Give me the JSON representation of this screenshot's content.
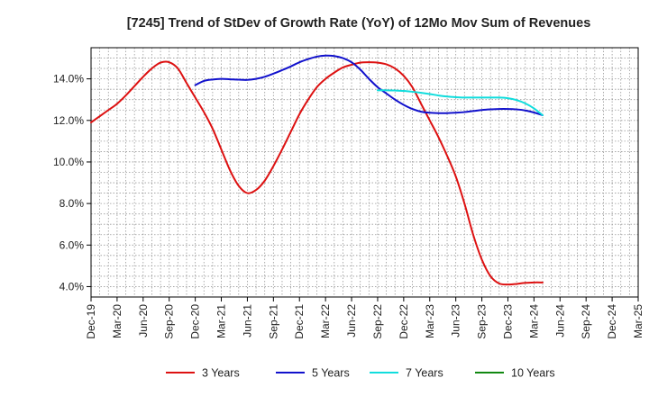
{
  "chart_data": {
    "type": "line",
    "title": "[7245]  Trend of StDev of Growth Rate (YoY) of 12Mo Mov Sum of Revenues",
    "xlabel": "",
    "ylabel": "",
    "x_range": [
      0,
      63
    ],
    "ylim": [
      3.5,
      15.5
    ],
    "y_ticks": [
      4,
      6,
      8,
      10,
      12,
      14
    ],
    "y_tick_labels": [
      "4.0%",
      "6.0%",
      "8.0%",
      "10.0%",
      "12.0%",
      "14.0%"
    ],
    "x_tick_labels": [
      "Dec-19",
      "Mar-20",
      "Jun-20",
      "Sep-20",
      "Dec-20",
      "Mar-21",
      "Jun-21",
      "Sep-21",
      "Dec-21",
      "Mar-22",
      "Jun-22",
      "Sep-22",
      "Dec-22",
      "Mar-23",
      "Jun-23",
      "Sep-23",
      "Dec-23",
      "Mar-24",
      "Jun-24",
      "Sep-24",
      "Dec-24",
      "Mar-25"
    ],
    "grid": true,
    "legend_position": "bottom",
    "series": [
      {
        "name": "3 Years",
        "color": "#dd1111",
        "points": [
          [
            0,
            11.9
          ],
          [
            1,
            12.2
          ],
          [
            2,
            12.5
          ],
          [
            3,
            12.8
          ],
          [
            4,
            13.2
          ],
          [
            5,
            13.65
          ],
          [
            6,
            14.1
          ],
          [
            7,
            14.5
          ],
          [
            8,
            14.78
          ],
          [
            9,
            14.8
          ],
          [
            10,
            14.5
          ],
          [
            11,
            13.8
          ],
          [
            12,
            13.1
          ],
          [
            13,
            12.4
          ],
          [
            14,
            11.6
          ],
          [
            15,
            10.6
          ],
          [
            16,
            9.6
          ],
          [
            17,
            8.85
          ],
          [
            18,
            8.5
          ],
          [
            19,
            8.65
          ],
          [
            20,
            9.1
          ],
          [
            21,
            9.8
          ],
          [
            22,
            10.6
          ],
          [
            23,
            11.45
          ],
          [
            24,
            12.3
          ],
          [
            25,
            13.0
          ],
          [
            26,
            13.6
          ],
          [
            27,
            14.0
          ],
          [
            28,
            14.3
          ],
          [
            29,
            14.55
          ],
          [
            30,
            14.68
          ],
          [
            31,
            14.78
          ],
          [
            32,
            14.8
          ],
          [
            33,
            14.78
          ],
          [
            34,
            14.7
          ],
          [
            35,
            14.5
          ],
          [
            36,
            14.15
          ],
          [
            37,
            13.6
          ],
          [
            38,
            12.8
          ],
          [
            39,
            12.0
          ],
          [
            40,
            11.2
          ],
          [
            41,
            10.3
          ],
          [
            42,
            9.3
          ],
          [
            43,
            8.0
          ],
          [
            44,
            6.5
          ],
          [
            45,
            5.3
          ],
          [
            46,
            4.5
          ],
          [
            47,
            4.15
          ],
          [
            48,
            4.1
          ],
          [
            49,
            4.13
          ],
          [
            50,
            4.18
          ],
          [
            51,
            4.2
          ],
          [
            52,
            4.2
          ]
        ]
      },
      {
        "name": "5 Years",
        "color": "#1111cc",
        "points": [
          [
            12,
            13.7
          ],
          [
            13,
            13.9
          ],
          [
            14,
            13.97
          ],
          [
            15,
            14.0
          ],
          [
            16,
            13.98
          ],
          [
            17,
            13.96
          ],
          [
            18,
            13.95
          ],
          [
            19,
            14.0
          ],
          [
            20,
            14.1
          ],
          [
            21,
            14.25
          ],
          [
            22,
            14.42
          ],
          [
            23,
            14.6
          ],
          [
            24,
            14.8
          ],
          [
            25,
            14.95
          ],
          [
            26,
            15.07
          ],
          [
            27,
            15.12
          ],
          [
            28,
            15.1
          ],
          [
            29,
            15.0
          ],
          [
            30,
            14.8
          ],
          [
            31,
            14.45
          ],
          [
            32,
            14.0
          ],
          [
            33,
            13.6
          ],
          [
            34,
            13.3
          ],
          [
            35,
            13.0
          ],
          [
            36,
            12.75
          ],
          [
            37,
            12.55
          ],
          [
            38,
            12.42
          ],
          [
            39,
            12.37
          ],
          [
            40,
            12.35
          ],
          [
            41,
            12.35
          ],
          [
            42,
            12.37
          ],
          [
            43,
            12.4
          ],
          [
            44,
            12.45
          ],
          [
            45,
            12.5
          ],
          [
            46,
            12.53
          ],
          [
            47,
            12.55
          ],
          [
            48,
            12.55
          ],
          [
            49,
            12.53
          ],
          [
            50,
            12.48
          ],
          [
            51,
            12.38
          ],
          [
            52,
            12.25
          ]
        ]
      },
      {
        "name": "7 Years",
        "color": "#11dddd",
        "points": [
          [
            33,
            13.45
          ],
          [
            34,
            13.45
          ],
          [
            35,
            13.44
          ],
          [
            36,
            13.42
          ],
          [
            37,
            13.38
          ],
          [
            38,
            13.33
          ],
          [
            39,
            13.27
          ],
          [
            40,
            13.2
          ],
          [
            41,
            13.15
          ],
          [
            42,
            13.12
          ],
          [
            43,
            13.1
          ],
          [
            44,
            13.1
          ],
          [
            45,
            13.1
          ],
          [
            46,
            13.1
          ],
          [
            47,
            13.1
          ],
          [
            48,
            13.07
          ],
          [
            49,
            12.98
          ],
          [
            50,
            12.82
          ],
          [
            51,
            12.58
          ],
          [
            52,
            12.25
          ]
        ]
      },
      {
        "name": "10 Years",
        "color": "#118811",
        "points": []
      }
    ]
  }
}
